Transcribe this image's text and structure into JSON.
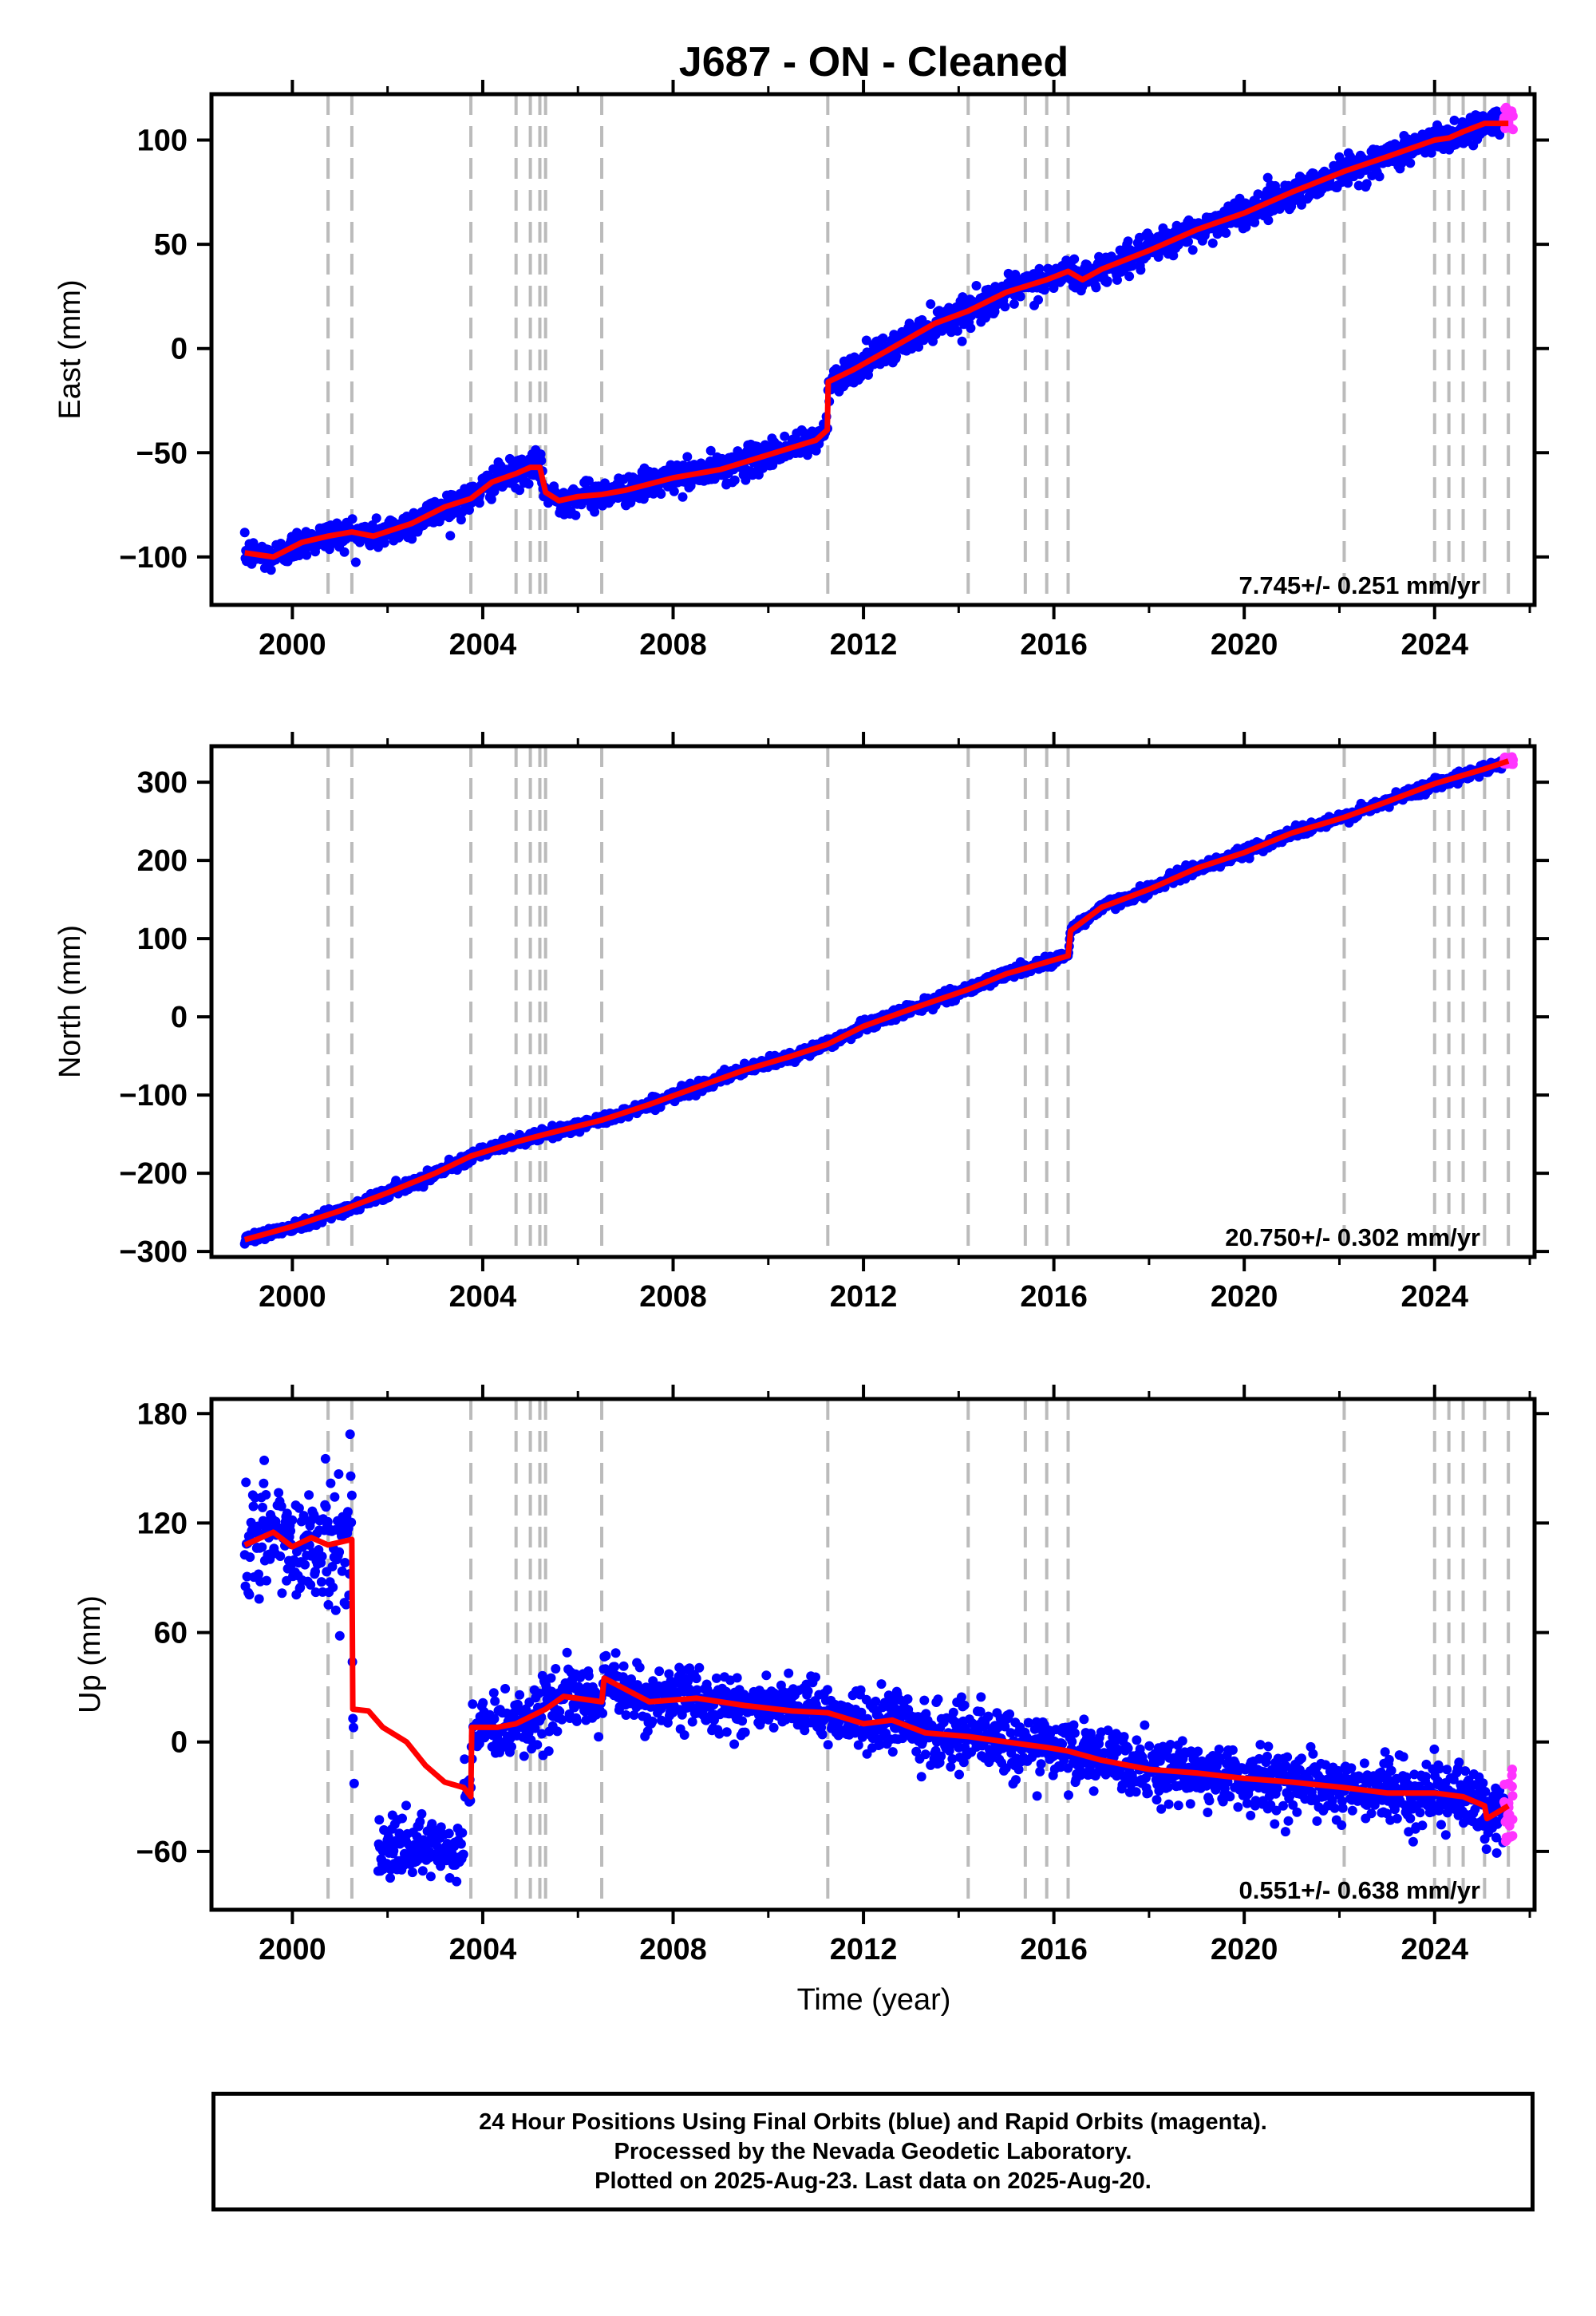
{
  "title": "J687  - ON - Cleaned",
  "xlabel": "Time (year)",
  "footer": {
    "line1": "24 Hour Positions Using Final Orbits (blue) and Rapid Orbits (magenta).",
    "line2": "Processed by the Nevada Geodetic Laboratory.",
    "line3": "Plotted on 2025-Aug-23. Last data on 2025-Aug-20."
  },
  "chart_data": [
    {
      "type": "scatter",
      "ylabel": "East (mm)",
      "xlim": [
        1998.3,
        2026.1
      ],
      "ylim": [
        -123,
        122
      ],
      "xticks": [
        2000,
        2004,
        2008,
        2012,
        2016,
        2020,
        2024
      ],
      "yticks": [
        -100,
        -50,
        0,
        50,
        100
      ],
      "rate": "7.745+/- 0.251 mm/yr",
      "event_lines": [
        2000.75,
        2001.25,
        2003.75,
        2004.7,
        2005.0,
        2005.2,
        2005.32,
        2006.5,
        2011.25,
        2014.2,
        2015.4,
        2015.85,
        2016.3,
        2022.1,
        2024.0,
        2024.3,
        2024.6,
        2025.05,
        2025.55
      ],
      "model": [
        [
          1999.0,
          -98
        ],
        [
          1999.6,
          -100
        ],
        [
          2000.2,
          -93
        ],
        [
          2000.75,
          -90
        ],
        [
          2001.25,
          -88
        ],
        [
          2001.7,
          -90
        ],
        [
          2002.5,
          -84
        ],
        [
          2003.2,
          -76
        ],
        [
          2003.75,
          -72
        ],
        [
          2004.2,
          -64
        ],
        [
          2004.7,
          -60
        ],
        [
          2005.0,
          -57
        ],
        [
          2005.2,
          -57
        ],
        [
          2005.32,
          -69
        ],
        [
          2005.6,
          -73
        ],
        [
          2006.0,
          -71
        ],
        [
          2006.5,
          -70
        ],
        [
          2007.0,
          -68
        ],
        [
          2008.0,
          -62
        ],
        [
          2009.0,
          -58
        ],
        [
          2010.0,
          -51
        ],
        [
          2011.0,
          -44
        ],
        [
          2011.24,
          -39
        ],
        [
          2011.26,
          -16
        ],
        [
          2011.8,
          -10
        ],
        [
          2012.5,
          -1
        ],
        [
          2013.5,
          12
        ],
        [
          2014.2,
          18
        ],
        [
          2015.0,
          27
        ],
        [
          2015.85,
          33
        ],
        [
          2016.3,
          37
        ],
        [
          2016.6,
          33
        ],
        [
          2017.0,
          38
        ],
        [
          2018.0,
          47
        ],
        [
          2019.0,
          57
        ],
        [
          2020.0,
          65
        ],
        [
          2021.0,
          75
        ],
        [
          2022.1,
          85
        ],
        [
          2023.0,
          92
        ],
        [
          2024.0,
          100
        ],
        [
          2024.3,
          101
        ],
        [
          2024.6,
          104
        ],
        [
          2025.05,
          108
        ],
        [
          2025.55,
          108
        ]
      ],
      "scatter_sd": 3.5,
      "rapid_range": [
        2025.45,
        2025.65
      ],
      "rapid_values": [
        104,
        116
      ]
    },
    {
      "type": "scatter",
      "ylabel": "North (mm)",
      "xlim": [
        1998.3,
        2026.1
      ],
      "ylim": [
        -307,
        346
      ],
      "xticks": [
        2000,
        2004,
        2008,
        2012,
        2016,
        2020,
        2024
      ],
      "yticks": [
        -300,
        -200,
        -100,
        0,
        100,
        200,
        300
      ],
      "rate": "20.750+/- 0.302 mm/yr",
      "event_lines": [
        2000.75,
        2001.25,
        2003.75,
        2004.7,
        2005.0,
        2005.2,
        2005.32,
        2006.5,
        2011.25,
        2014.2,
        2015.4,
        2015.85,
        2016.3,
        2022.1,
        2024.0,
        2024.3,
        2024.6,
        2025.05,
        2025.55
      ],
      "model": [
        [
          1999.0,
          -285
        ],
        [
          2000.0,
          -268
        ],
        [
          2001.0,
          -248
        ],
        [
          2002.0,
          -225
        ],
        [
          2003.0,
          -200
        ],
        [
          2003.75,
          -178
        ],
        [
          2004.7,
          -160
        ],
        [
          2005.32,
          -150
        ],
        [
          2006.5,
          -132
        ],
        [
          2007.5,
          -112
        ],
        [
          2008.5,
          -90
        ],
        [
          2009.5,
          -68
        ],
        [
          2010.5,
          -50
        ],
        [
          2011.25,
          -35
        ],
        [
          2012.0,
          -12
        ],
        [
          2013.0,
          10
        ],
        [
          2014.2,
          35
        ],
        [
          2015.0,
          55
        ],
        [
          2015.85,
          70
        ],
        [
          2016.3,
          78
        ],
        [
          2016.35,
          110
        ],
        [
          2017.0,
          140
        ],
        [
          2018.0,
          163
        ],
        [
          2019.0,
          190
        ],
        [
          2020.0,
          210
        ],
        [
          2021.0,
          235
        ],
        [
          2022.1,
          255
        ],
        [
          2023.0,
          275
        ],
        [
          2024.0,
          298
        ],
        [
          2025.0,
          316
        ],
        [
          2025.55,
          327
        ]
      ],
      "scatter_sd": 3.5,
      "rapid_range": [
        2025.45,
        2025.65
      ],
      "rapid_values": [
        322,
        333
      ]
    },
    {
      "type": "scatter",
      "ylabel": "Up (mm)",
      "xlim": [
        1998.3,
        2026.1
      ],
      "ylim": [
        -92,
        188
      ],
      "xticks": [
        2000,
        2004,
        2008,
        2012,
        2016,
        2020,
        2024
      ],
      "yticks": [
        -60,
        0,
        60,
        120,
        180
      ],
      "ytick_labels": [
        "−60",
        "0",
        "60",
        "120",
        "180"
      ],
      "rate": "0.551+/- 0.638 mm/yr",
      "event_lines": [
        2000.75,
        2001.25,
        2003.75,
        2004.7,
        2005.0,
        2005.2,
        2005.32,
        2006.5,
        2011.25,
        2014.2,
        2015.4,
        2015.85,
        2016.3,
        2022.1,
        2024.0,
        2024.3,
        2024.6,
        2025.05,
        2025.55
      ],
      "model": [
        [
          1999.0,
          108
        ],
        [
          1999.6,
          115
        ],
        [
          2000.0,
          107
        ],
        [
          2000.4,
          112
        ],
        [
          2000.75,
          108
        ],
        [
          2001.25,
          111
        ],
        [
          2001.27,
          18
        ],
        [
          2001.6,
          17
        ],
        [
          2001.9,
          8
        ],
        [
          2002.4,
          0
        ],
        [
          2002.8,
          -13
        ],
        [
          2003.2,
          -22
        ],
        [
          2003.6,
          -25
        ],
        [
          2003.75,
          -30
        ],
        [
          2003.77,
          8
        ],
        [
          2004.3,
          8
        ],
        [
          2004.7,
          10
        ],
        [
          2005.32,
          18
        ],
        [
          2005.7,
          25
        ],
        [
          2006.5,
          22
        ],
        [
          2006.55,
          35
        ],
        [
          2007.5,
          22
        ],
        [
          2008.5,
          24
        ],
        [
          2009.5,
          20
        ],
        [
          2010.5,
          17
        ],
        [
          2011.25,
          16
        ],
        [
          2012.0,
          10
        ],
        [
          2012.6,
          12
        ],
        [
          2013.3,
          5
        ],
        [
          2014.2,
          3
        ],
        [
          2015.0,
          0
        ],
        [
          2015.85,
          -3
        ],
        [
          2016.3,
          -5
        ],
        [
          2017.0,
          -10
        ],
        [
          2018.0,
          -15
        ],
        [
          2019.0,
          -17
        ],
        [
          2020.0,
          -20
        ],
        [
          2021.0,
          -22
        ],
        [
          2022.1,
          -25
        ],
        [
          2023.0,
          -28
        ],
        [
          2024.0,
          -28
        ],
        [
          2024.6,
          -30
        ],
        [
          2025.05,
          -35
        ],
        [
          2025.1,
          -42
        ],
        [
          2025.55,
          -35
        ]
      ],
      "scatter_sd": 8,
      "offset_cluster": {
        "range": [
          2001.8,
          2003.6
        ],
        "center": -60,
        "sd": 9
      },
      "early_scatter_sd": 16,
      "rapid_range": [
        2025.45,
        2025.65
      ],
      "rapid_values": [
        -55,
        -12
      ]
    }
  ],
  "colors": {
    "final_orbits": "#0000ff",
    "rapid_orbits": "#ff33ff",
    "model": "#ff0000",
    "event_line": "#bbbbbb",
    "axis": "#000000"
  }
}
